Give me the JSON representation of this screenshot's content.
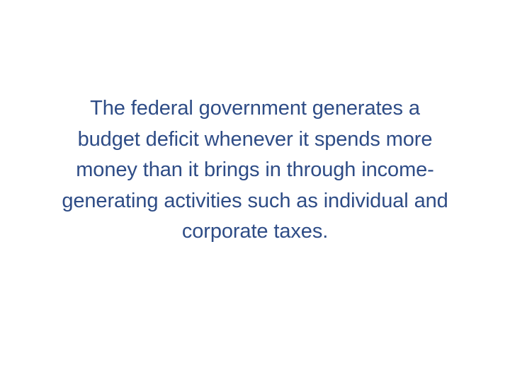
{
  "slide": {
    "lines": [
      "The federal government generates a",
      "budget deficit whenever it spends more",
      "money than it brings in through income-",
      "generating activities such as individual and",
      "corporate taxes."
    ]
  },
  "colors": {
    "text": "#2e4c86",
    "background": "#ffffff"
  }
}
